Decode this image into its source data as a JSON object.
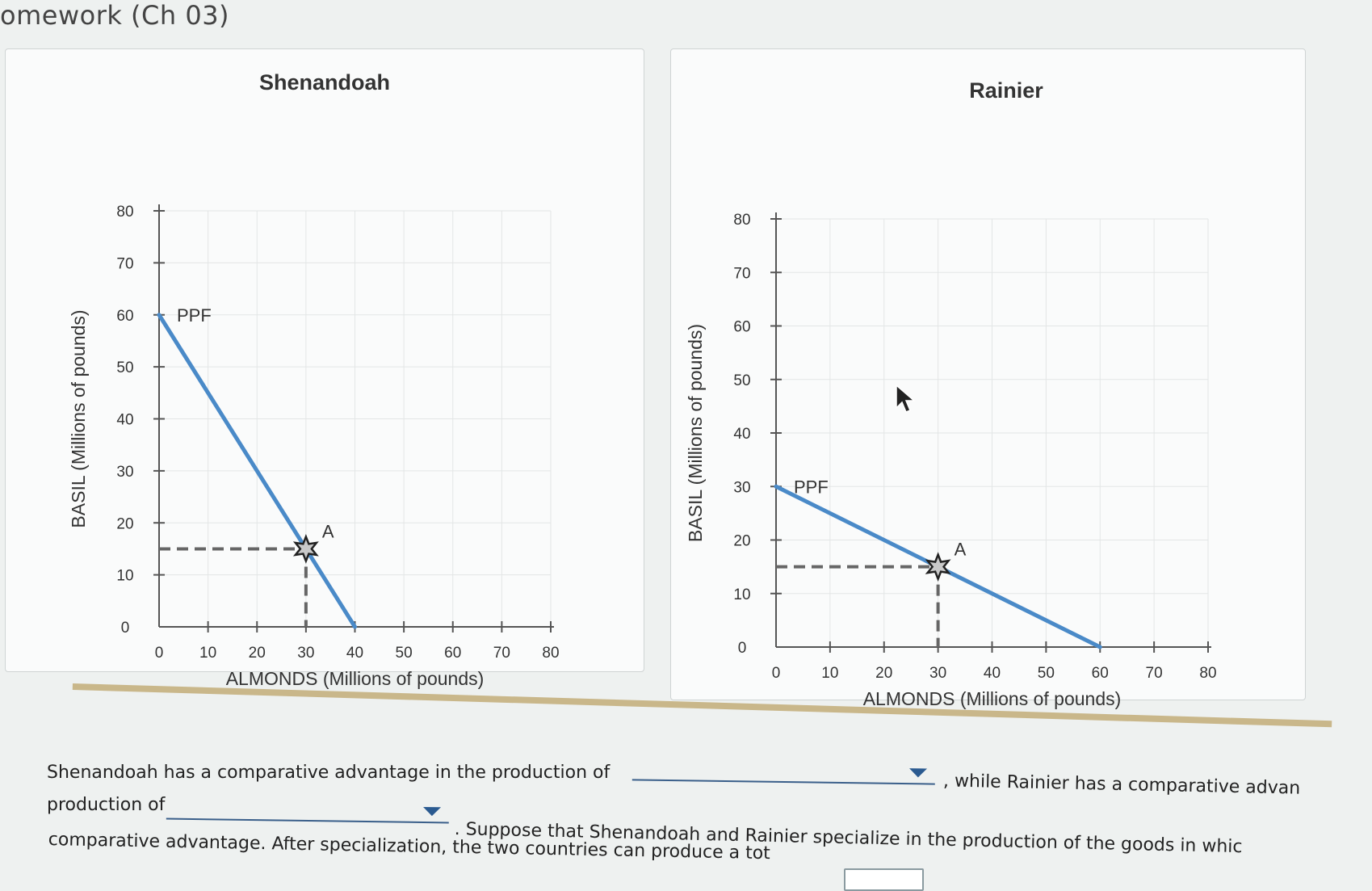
{
  "header": {
    "title": "omework (Ch 03)"
  },
  "chart_data": [
    {
      "type": "line",
      "title": "Shenandoah",
      "xlabel": "ALMONDS (Millions of pounds)",
      "ylabel": "BASIL (Millions of pounds)",
      "xlim": [
        0,
        80
      ],
      "ylim": [
        0,
        80
      ],
      "x_ticks": [
        "0",
        "10",
        "20",
        "30",
        "40",
        "50",
        "60",
        "70",
        "80"
      ],
      "y_ticks": [
        "0",
        "10",
        "20",
        "30",
        "40",
        "50",
        "60",
        "70",
        "80"
      ],
      "series": [
        {
          "name": "PPF",
          "x": [
            0,
            40
          ],
          "y": [
            60,
            0
          ],
          "color": "#4a8ac8"
        }
      ],
      "point": {
        "label": "A",
        "x": 30,
        "y": 15
      },
      "grid": true
    },
    {
      "type": "line",
      "title": "Rainier",
      "xlabel": "ALMONDS (Millions of pounds)",
      "ylabel": "BASIL (Millions of pounds)",
      "xlim": [
        0,
        80
      ],
      "ylim": [
        0,
        80
      ],
      "x_ticks": [
        "0",
        "10",
        "20",
        "30",
        "40",
        "50",
        "60",
        "70",
        "80"
      ],
      "y_ticks": [
        "0",
        "10",
        "20",
        "30",
        "40",
        "50",
        "60",
        "70",
        "80"
      ],
      "series": [
        {
          "name": "PPF",
          "x": [
            0,
            60
          ],
          "y": [
            30,
            0
          ],
          "color": "#4a8ac8"
        }
      ],
      "point": {
        "label": "A",
        "x": 30,
        "y": 15
      },
      "grid": true
    }
  ],
  "question": {
    "line1": "Shenandoah has a comparative advantage in the production of",
    "line1_end": ", while Rainier has a comparative advan",
    "line2_start": "production of",
    "line2_end": ". Suppose that Shenandoah and Rainier specialize in the production of the goods in whic",
    "line3": "comparative advantage. After specialization, the two countries can produce a tot",
    "dropdown1_value": "",
    "dropdown2_value": ""
  }
}
